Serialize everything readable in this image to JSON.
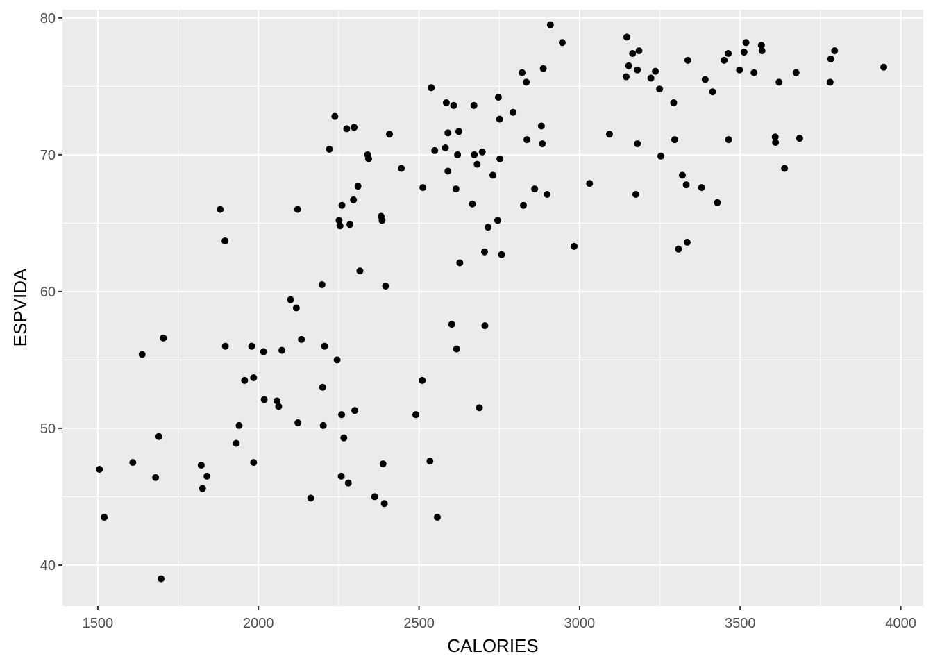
{
  "chart_data": {
    "type": "scatter",
    "title": "",
    "xlabel": "CALORIES",
    "ylabel": "ESPVIDA",
    "xlim": [
      1390,
      4070
    ],
    "ylim": [
      37,
      80.6
    ],
    "xticks": [
      1500,
      2000,
      2500,
      3000,
      3500,
      4000
    ],
    "yticks": [
      40,
      50,
      60,
      70,
      80
    ],
    "xminor": [
      1750,
      2250,
      2750,
      3250,
      3750
    ],
    "yminor": [
      45,
      55,
      65,
      75
    ],
    "grid": true,
    "colors": {
      "panel": "#EBEBEB",
      "grid": "#FFFFFF",
      "point": "#000000",
      "tick_text": "#4D4D4D",
      "axis_title": "#000000"
    },
    "points": [
      [
        1505,
        47.0
      ],
      [
        1520,
        43.5
      ],
      [
        1609,
        47.5
      ],
      [
        1638,
        55.4
      ],
      [
        1680,
        46.4
      ],
      [
        1690,
        49.4
      ],
      [
        1697,
        39.0
      ],
      [
        1704,
        56.6
      ],
      [
        1822,
        47.3
      ],
      [
        1826,
        45.6
      ],
      [
        1840,
        46.5
      ],
      [
        1881,
        66.0
      ],
      [
        1896,
        63.7
      ],
      [
        1897,
        56.0
      ],
      [
        1931,
        48.9
      ],
      [
        1940,
        50.2
      ],
      [
        1957,
        53.5
      ],
      [
        1979,
        56.0
      ],
      [
        1985,
        53.7
      ],
      [
        1985,
        47.5
      ],
      [
        2016,
        55.6
      ],
      [
        2018,
        52.1
      ],
      [
        2058,
        52.0
      ],
      [
        2063,
        51.6
      ],
      [
        2073,
        55.7
      ],
      [
        2100,
        59.4
      ],
      [
        2118,
        58.8
      ],
      [
        2122,
        66.0
      ],
      [
        2123,
        50.4
      ],
      [
        2134,
        56.5
      ],
      [
        2163,
        44.9
      ],
      [
        2198,
        60.5
      ],
      [
        2200,
        53.0
      ],
      [
        2202,
        50.2
      ],
      [
        2206,
        56.0
      ],
      [
        2221,
        70.4
      ],
      [
        2238,
        72.8
      ],
      [
        2245,
        55.0
      ],
      [
        2251,
        65.2
      ],
      [
        2254,
        64.8
      ],
      [
        2258,
        46.5
      ],
      [
        2259,
        51.0
      ],
      [
        2260,
        66.3
      ],
      [
        2266,
        49.3
      ],
      [
        2275,
        71.9
      ],
      [
        2280,
        46.0
      ],
      [
        2285,
        64.9
      ],
      [
        2296,
        66.7
      ],
      [
        2298,
        72.0
      ],
      [
        2300,
        51.3
      ],
      [
        2310,
        67.7
      ],
      [
        2316,
        61.5
      ],
      [
        2340,
        70.0
      ],
      [
        2343,
        69.7
      ],
      [
        2362,
        45.0
      ],
      [
        2382,
        65.5
      ],
      [
        2385,
        65.2
      ],
      [
        2388,
        47.4
      ],
      [
        2392,
        44.5
      ],
      [
        2396,
        60.4
      ],
      [
        2408,
        71.5
      ],
      [
        2445,
        69.0
      ],
      [
        2490,
        51.0
      ],
      [
        2510,
        53.5
      ],
      [
        2512,
        67.6
      ],
      [
        2534,
        47.6
      ],
      [
        2538,
        74.9
      ],
      [
        2549,
        70.3
      ],
      [
        2557,
        43.5
      ],
      [
        2582,
        70.5
      ],
      [
        2585,
        73.8
      ],
      [
        2590,
        71.6
      ],
      [
        2590,
        68.8
      ],
      [
        2602,
        57.6
      ],
      [
        2608,
        73.6
      ],
      [
        2615,
        67.5
      ],
      [
        2617,
        55.8
      ],
      [
        2620,
        70.0
      ],
      [
        2624,
        71.7
      ],
      [
        2627,
        62.1
      ],
      [
        2666,
        66.4
      ],
      [
        2671,
        73.6
      ],
      [
        2672,
        70.0
      ],
      [
        2681,
        69.3
      ],
      [
        2688,
        51.5
      ],
      [
        2697,
        70.2
      ],
      [
        2704,
        62.9
      ],
      [
        2705,
        57.5
      ],
      [
        2715,
        64.7
      ],
      [
        2730,
        68.5
      ],
      [
        2745,
        65.2
      ],
      [
        2747,
        74.2
      ],
      [
        2751,
        72.6
      ],
      [
        2752,
        69.7
      ],
      [
        2757,
        62.7
      ],
      [
        2793,
        73.1
      ],
      [
        2821,
        76.0
      ],
      [
        2825,
        66.3
      ],
      [
        2834,
        75.3
      ],
      [
        2836,
        71.1
      ],
      [
        2860,
        67.5
      ],
      [
        2881,
        72.1
      ],
      [
        2884,
        70.8
      ],
      [
        2887,
        76.3
      ],
      [
        2899,
        67.1
      ],
      [
        2909,
        79.5
      ],
      [
        2946,
        78.2
      ],
      [
        2983,
        63.3
      ],
      [
        3031,
        67.9
      ],
      [
        3093,
        71.5
      ],
      [
        3145,
        75.7
      ],
      [
        3147,
        78.6
      ],
      [
        3153,
        76.5
      ],
      [
        3165,
        77.4
      ],
      [
        3175,
        67.1
      ],
      [
        3180,
        70.8
      ],
      [
        3180,
        76.2
      ],
      [
        3185,
        77.6
      ],
      [
        3222,
        75.6
      ],
      [
        3236,
        76.1
      ],
      [
        3249,
        74.8
      ],
      [
        3253,
        69.9
      ],
      [
        3293,
        73.8
      ],
      [
        3296,
        71.1
      ],
      [
        3308,
        63.1
      ],
      [
        3320,
        68.5
      ],
      [
        3332,
        67.8
      ],
      [
        3335,
        63.6
      ],
      [
        3337,
        76.9
      ],
      [
        3380,
        67.6
      ],
      [
        3391,
        75.5
      ],
      [
        3414,
        74.6
      ],
      [
        3429,
        66.5
      ],
      [
        3450,
        76.9
      ],
      [
        3463,
        77.4
      ],
      [
        3464,
        71.1
      ],
      [
        3498,
        76.2
      ],
      [
        3512,
        77.5
      ],
      [
        3518,
        78.2
      ],
      [
        3543,
        76.0
      ],
      [
        3566,
        78.0
      ],
      [
        3568,
        77.6
      ],
      [
        3609,
        71.3
      ],
      [
        3610,
        70.9
      ],
      [
        3621,
        75.3
      ],
      [
        3638,
        69.0
      ],
      [
        3674,
        76.0
      ],
      [
        3685,
        71.2
      ],
      [
        3780,
        75.3
      ],
      [
        3782,
        77.0
      ],
      [
        3794,
        77.6
      ],
      [
        3947,
        76.4
      ]
    ]
  }
}
